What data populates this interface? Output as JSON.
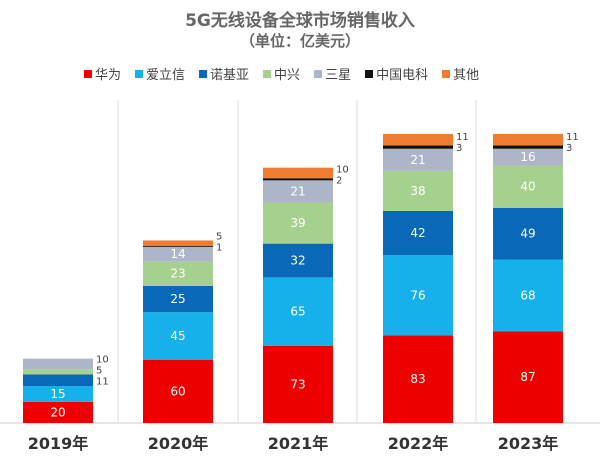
{
  "chart_data": {
    "type": "bar",
    "stacked": true,
    "title": "5G无线设备全球市场销售收入",
    "subtitle": "（单位：亿美元）",
    "categories": [
      "2019年",
      "2020年",
      "2021年",
      "2022年",
      "2023年"
    ],
    "series": [
      {
        "name": "华为",
        "color": "#ee0000",
        "values": [
          20,
          60,
          73,
          83,
          87
        ]
      },
      {
        "name": "爱立信",
        "color": "#16b0ea",
        "values": [
          15,
          45,
          65,
          76,
          68
        ]
      },
      {
        "name": "诺基亚",
        "color": "#0a68b8",
        "values": [
          11,
          25,
          32,
          42,
          49
        ]
      },
      {
        "name": "中兴",
        "color": "#a6d08e",
        "values": [
          5,
          23,
          39,
          38,
          40
        ]
      },
      {
        "name": "三星",
        "color": "#adb6c8",
        "values": [
          10,
          14,
          21,
          21,
          16
        ]
      },
      {
        "name": "中国电科",
        "color": "#111111",
        "values": [
          0,
          1,
          2,
          3,
          3
        ]
      },
      {
        "name": "其他",
        "color": "#ef7d31",
        "values": [
          0,
          5,
          10,
          11,
          11
        ]
      }
    ],
    "legend_position": "top",
    "grid": false
  }
}
